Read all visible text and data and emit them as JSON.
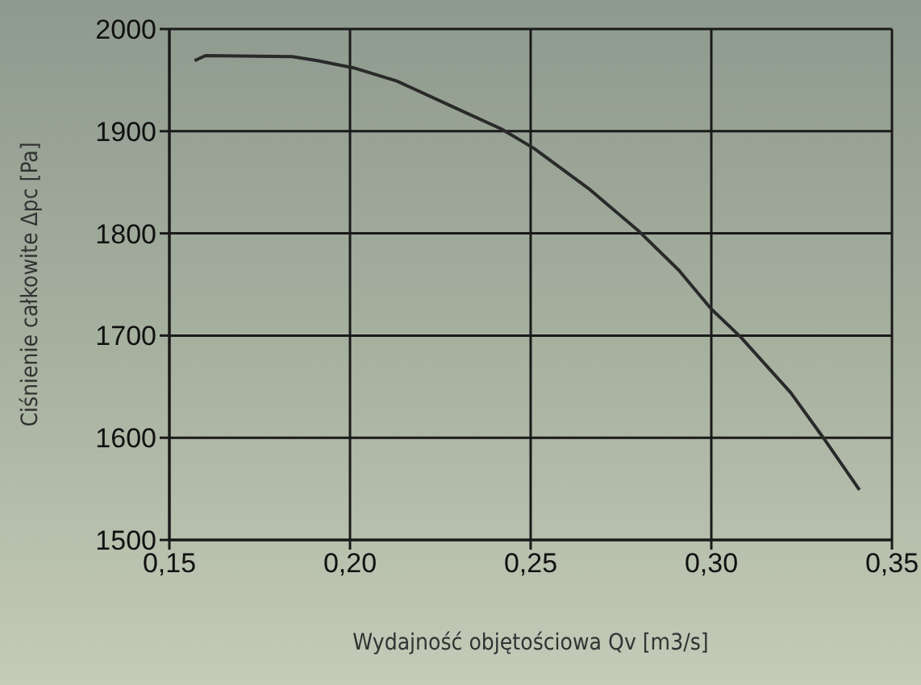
{
  "chart_data": {
    "type": "line",
    "xlabel": "Wydajność objętościowa  Qv [m3/s]",
    "ylabel": "Ciśnienie całkowite Δpc [Pa]",
    "x": [
      0.157,
      0.16,
      0.184,
      0.191,
      0.201,
      0.213,
      0.229,
      0.242,
      0.251,
      0.266,
      0.28,
      0.291,
      0.3,
      0.308,
      0.322,
      0.331,
      0.341
    ],
    "series": [
      {
        "color": "#2a2a2a",
        "values": [
          1969,
          1974,
          1973,
          1969,
          1962,
          1949,
          1923,
          1902,
          1883,
          1844,
          1802,
          1764,
          1726,
          1699,
          1644,
          1600,
          1549
        ]
      }
    ],
    "xlim": [
      0.15,
      0.35
    ],
    "xticks": [
      {
        "value": 0.15,
        "label": "0,15"
      },
      {
        "value": 0.2,
        "label": "0,20"
      },
      {
        "value": 0.25,
        "label": "0,25"
      },
      {
        "value": 0.3,
        "label": "0,30"
      },
      {
        "value": 0.35,
        "label": "0,35"
      }
    ],
    "ylim": [
      1500,
      2000
    ],
    "yticks": [
      1500,
      1600,
      1700,
      1800,
      1900,
      2000
    ],
    "grid": true,
    "marker": "none",
    "line_style": "solid"
  }
}
